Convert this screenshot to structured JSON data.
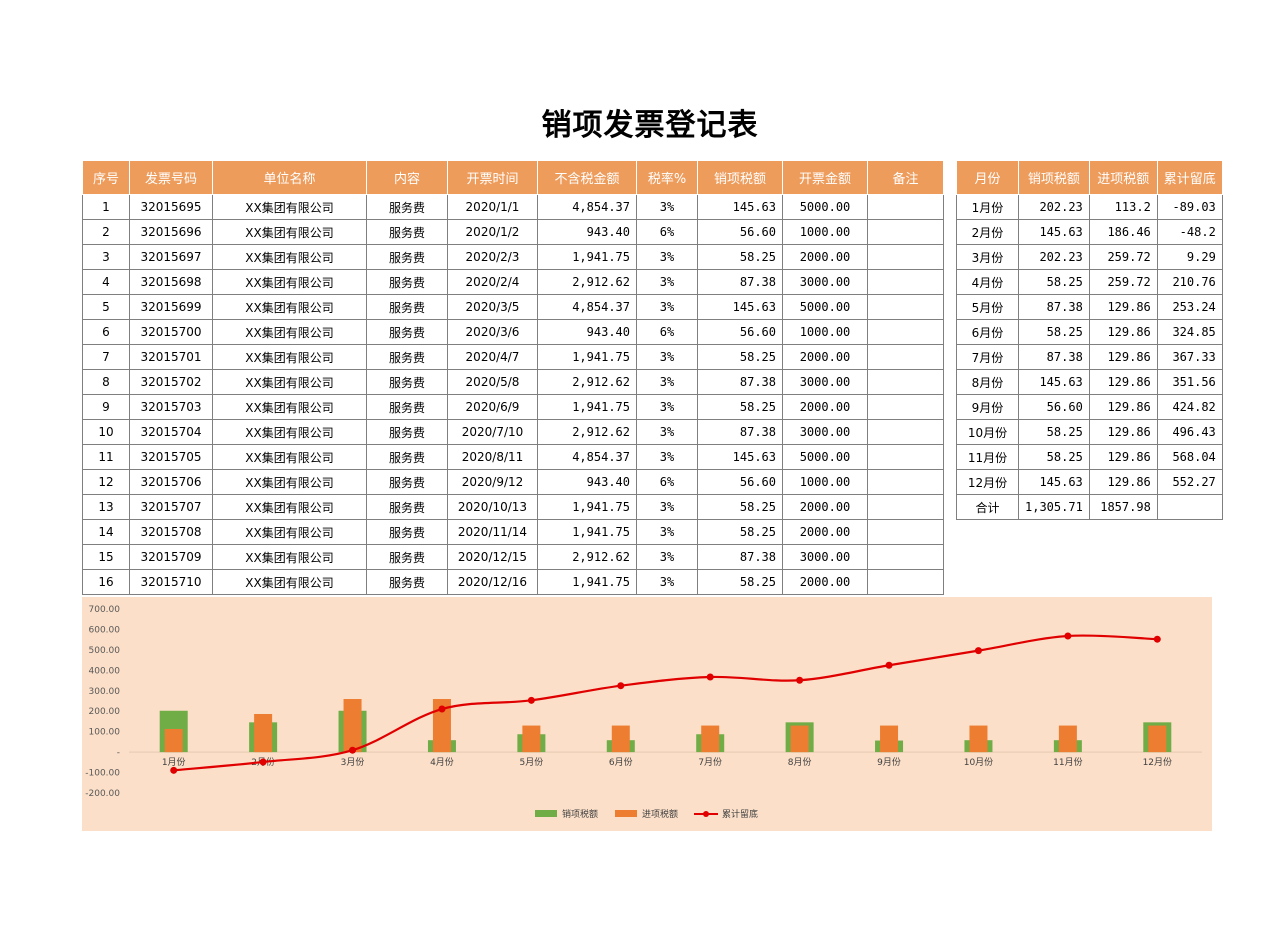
{
  "title": "销项发票登记表",
  "main_table": {
    "headers": [
      "序号",
      "发票号码",
      "单位名称",
      "内容",
      "开票时间",
      "不含税金额",
      "税率%",
      "销项税额",
      "开票金额",
      "备注"
    ],
    "rows": [
      [
        "1",
        "32015695",
        "XX集团有限公司",
        "服务费",
        "2020/1/1",
        "4,854.37",
        "3%",
        "145.63",
        "5000.00",
        ""
      ],
      [
        "2",
        "32015696",
        "XX集团有限公司",
        "服务费",
        "2020/1/2",
        "943.40",
        "6%",
        "56.60",
        "1000.00",
        ""
      ],
      [
        "3",
        "32015697",
        "XX集团有限公司",
        "服务费",
        "2020/2/3",
        "1,941.75",
        "3%",
        "58.25",
        "2000.00",
        ""
      ],
      [
        "4",
        "32015698",
        "XX集团有限公司",
        "服务费",
        "2020/2/4",
        "2,912.62",
        "3%",
        "87.38",
        "3000.00",
        ""
      ],
      [
        "5",
        "32015699",
        "XX集团有限公司",
        "服务费",
        "2020/3/5",
        "4,854.37",
        "3%",
        "145.63",
        "5000.00",
        ""
      ],
      [
        "6",
        "32015700",
        "XX集团有限公司",
        "服务费",
        "2020/3/6",
        "943.40",
        "6%",
        "56.60",
        "1000.00",
        ""
      ],
      [
        "7",
        "32015701",
        "XX集团有限公司",
        "服务费",
        "2020/4/7",
        "1,941.75",
        "3%",
        "58.25",
        "2000.00",
        ""
      ],
      [
        "8",
        "32015702",
        "XX集团有限公司",
        "服务费",
        "2020/5/8",
        "2,912.62",
        "3%",
        "87.38",
        "3000.00",
        ""
      ],
      [
        "9",
        "32015703",
        "XX集团有限公司",
        "服务费",
        "2020/6/9",
        "1,941.75",
        "3%",
        "58.25",
        "2000.00",
        ""
      ],
      [
        "10",
        "32015704",
        "XX集团有限公司",
        "服务费",
        "2020/7/10",
        "2,912.62",
        "3%",
        "87.38",
        "3000.00",
        ""
      ],
      [
        "11",
        "32015705",
        "XX集团有限公司",
        "服务费",
        "2020/8/11",
        "4,854.37",
        "3%",
        "145.63",
        "5000.00",
        ""
      ],
      [
        "12",
        "32015706",
        "XX集团有限公司",
        "服务费",
        "2020/9/12",
        "943.40",
        "6%",
        "56.60",
        "1000.00",
        ""
      ],
      [
        "13",
        "32015707",
        "XX集团有限公司",
        "服务费",
        "2020/10/13",
        "1,941.75",
        "3%",
        "58.25",
        "2000.00",
        ""
      ],
      [
        "14",
        "32015708",
        "XX集团有限公司",
        "服务费",
        "2020/11/14",
        "1,941.75",
        "3%",
        "58.25",
        "2000.00",
        ""
      ],
      [
        "15",
        "32015709",
        "XX集团有限公司",
        "服务费",
        "2020/12/15",
        "2,912.62",
        "3%",
        "87.38",
        "3000.00",
        ""
      ],
      [
        "16",
        "32015710",
        "XX集团有限公司",
        "服务费",
        "2020/12/16",
        "1,941.75",
        "3%",
        "58.25",
        "2000.00",
        ""
      ]
    ]
  },
  "side_table": {
    "headers": [
      "月份",
      "销项税额",
      "进项税额",
      "累计留底"
    ],
    "rows": [
      [
        "1月份",
        "202.23",
        "113.2",
        "-89.03"
      ],
      [
        "2月份",
        "145.63",
        "186.46",
        "-48.2"
      ],
      [
        "3月份",
        "202.23",
        "259.72",
        "9.29"
      ],
      [
        "4月份",
        "58.25",
        "259.72",
        "210.76"
      ],
      [
        "5月份",
        "87.38",
        "129.86",
        "253.24"
      ],
      [
        "6月份",
        "58.25",
        "129.86",
        "324.85"
      ],
      [
        "7月份",
        "87.38",
        "129.86",
        "367.33"
      ],
      [
        "8月份",
        "145.63",
        "129.86",
        "351.56"
      ],
      [
        "9月份",
        "56.60",
        "129.86",
        "424.82"
      ],
      [
        "10月份",
        "58.25",
        "129.86",
        "496.43"
      ],
      [
        "11月份",
        "58.25",
        "129.86",
        "568.04"
      ],
      [
        "12月份",
        "145.63",
        "129.86",
        "552.27"
      ],
      [
        "合计",
        "1,305.71",
        "1857.98",
        ""
      ]
    ]
  },
  "chart_data": {
    "type": "bar",
    "categories": [
      "1月份",
      "2月份",
      "3月份",
      "4月份",
      "5月份",
      "6月份",
      "7月份",
      "8月份",
      "9月份",
      "10月份",
      "11月份",
      "12月份"
    ],
    "series": [
      {
        "name": "销项税额",
        "type": "bar",
        "color": "#70ad47",
        "values": [
          202.23,
          145.63,
          202.23,
          58.25,
          87.38,
          58.25,
          87.38,
          145.63,
          56.6,
          58.25,
          58.25,
          145.63
        ]
      },
      {
        "name": "进项税额",
        "type": "bar",
        "color": "#ed7d31",
        "values": [
          113.2,
          186.46,
          259.72,
          259.72,
          129.86,
          129.86,
          129.86,
          129.86,
          129.86,
          129.86,
          129.86,
          129.86
        ]
      },
      {
        "name": "累计留底",
        "type": "line",
        "color": "#e00000",
        "values": [
          -89.03,
          -48.2,
          9.29,
          210.76,
          253.24,
          324.85,
          367.33,
          351.56,
          424.82,
          496.43,
          568.04,
          552.27
        ]
      }
    ],
    "ylim": [
      -200,
      700
    ],
    "yticks": [
      "700.00",
      "600.00",
      "500.00",
      "400.00",
      "300.00",
      "200.00",
      "100.00",
      "-",
      "-100.00",
      "-200.00"
    ],
    "legend": "bottom",
    "background": "#fbdfc8"
  }
}
